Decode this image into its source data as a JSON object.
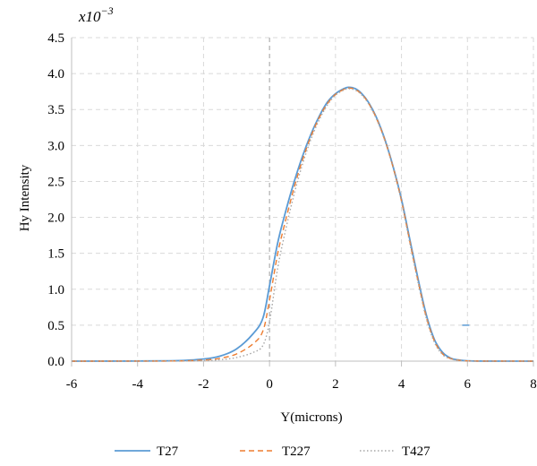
{
  "chart_data": {
    "type": "line",
    "title": "",
    "xlabel": "Y(microns)",
    "ylabel": "Hy Intensity",
    "y_multiplier": {
      "base": "x10",
      "exponent": "−3"
    },
    "xlim": [
      -6,
      8
    ],
    "ylim": [
      0.0,
      4.5
    ],
    "x_ticks": [
      "-6",
      "-4",
      "-2",
      "0",
      "2",
      "4",
      "6",
      "8"
    ],
    "y_ticks": [
      "0.0",
      "0.5",
      "1.0",
      "1.5",
      "2.0",
      "2.5",
      "3.0",
      "3.5",
      "4.0",
      "4.5"
    ],
    "grid": true,
    "legend_position": "bottom",
    "series": [
      {
        "name": "T27",
        "color": "#5B9BD5",
        "style": "solid",
        "x": [
          -6,
          -3,
          -2,
          -1.5,
          -1,
          -0.5,
          -0.2,
          0,
          0.25,
          0.5,
          0.75,
          1,
          1.25,
          1.5,
          1.75,
          2,
          2.25,
          2.4,
          2.6,
          2.8,
          3,
          3.25,
          3.5,
          3.75,
          4,
          4.25,
          4.5,
          4.75,
          5,
          5.25,
          5.5,
          5.75,
          6,
          6.5,
          8
        ],
        "y": [
          0,
          0.005,
          0.03,
          0.07,
          0.17,
          0.38,
          0.6,
          1.05,
          1.65,
          2.1,
          2.5,
          2.85,
          3.15,
          3.4,
          3.6,
          3.72,
          3.79,
          3.81,
          3.79,
          3.72,
          3.6,
          3.38,
          3.08,
          2.7,
          2.25,
          1.7,
          1.15,
          0.65,
          0.3,
          0.12,
          0.04,
          0.015,
          0.005,
          0.001,
          0
        ]
      },
      {
        "name": "T227",
        "color": "#ED7D31",
        "style": "dashed",
        "x": [
          -6,
          -3,
          -2,
          -1.5,
          -1,
          -0.5,
          -0.2,
          0,
          0.25,
          0.5,
          0.75,
          1,
          1.25,
          1.5,
          1.75,
          2,
          2.25,
          2.4,
          2.6,
          2.8,
          3,
          3.25,
          3.5,
          3.75,
          4,
          4.25,
          4.5,
          4.75,
          5,
          5.25,
          5.5,
          5.75,
          6,
          6.5,
          8
        ],
        "y": [
          0,
          0.002,
          0.015,
          0.04,
          0.1,
          0.24,
          0.42,
          0.85,
          1.5,
          1.98,
          2.42,
          2.8,
          3.12,
          3.38,
          3.58,
          3.71,
          3.78,
          3.8,
          3.78,
          3.71,
          3.59,
          3.37,
          3.07,
          2.69,
          2.23,
          1.67,
          1.12,
          0.62,
          0.28,
          0.1,
          0.035,
          0.012,
          0.004,
          0.001,
          0
        ]
      },
      {
        "name": "T427",
        "color": "#A5A5A5",
        "style": "dotted",
        "x": [
          -6,
          -3,
          -2,
          -1.5,
          -1,
          -0.5,
          -0.2,
          0,
          0.25,
          0.5,
          0.75,
          1,
          1.25,
          1.5,
          1.75,
          2,
          2.25,
          2.4,
          2.6,
          2.8,
          3,
          3.25,
          3.5,
          3.75,
          4,
          4.25,
          4.5,
          4.75,
          5,
          5.25,
          5.5,
          5.75,
          6,
          6.5,
          8
        ],
        "y": [
          0,
          0.001,
          0.006,
          0.02,
          0.05,
          0.12,
          0.22,
          0.55,
          1.3,
          1.85,
          2.33,
          2.74,
          3.08,
          3.35,
          3.56,
          3.7,
          3.77,
          3.79,
          3.77,
          3.7,
          3.58,
          3.36,
          3.06,
          2.68,
          2.22,
          1.65,
          1.1,
          0.6,
          0.26,
          0.09,
          0.03,
          0.01,
          0.003,
          0.001,
          0
        ]
      }
    ],
    "annotations": [
      {
        "type": "short-mark",
        "x": 5.95,
        "y": 0.5,
        "color": "#5B9BD5"
      }
    ]
  }
}
